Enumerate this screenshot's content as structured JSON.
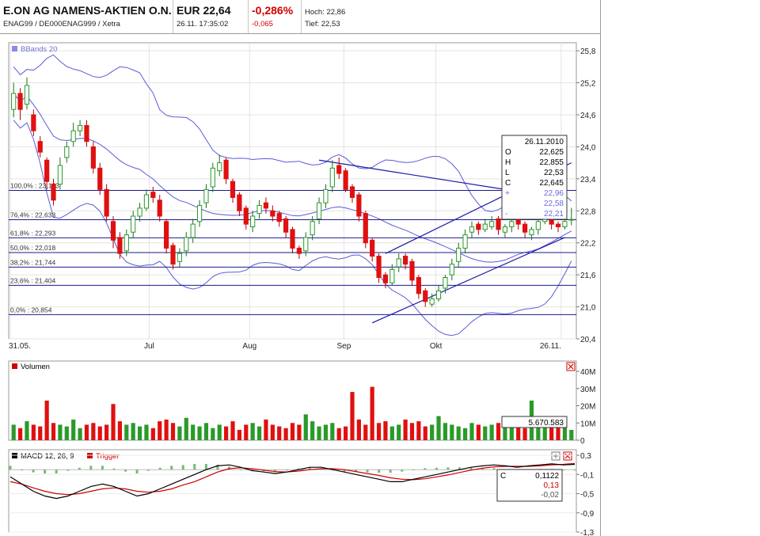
{
  "header": {
    "name": "E.ON AG NAMENS-AKTIEN O.N.",
    "ids": "ENAG99 / DE000ENAG999 / Xetra",
    "price": "EUR 22,64",
    "datetime": "26.11. 17:35:02",
    "change_pct": "-0,286%",
    "change_abs": "-0,065",
    "high": "Hoch: 22,86",
    "low": "Tief: 22,53"
  },
  "legend": {
    "bbands": "BBands 20",
    "volume": "Volumen",
    "macd": "MACD 12, 26, 9",
    "trigger": "Trigger"
  },
  "colors": {
    "up": "#2a9a2a",
    "down": "#e01010",
    "band": "#5a5ad8",
    "line": "#1a1aa8",
    "macd": "#000000",
    "trigger": "#d00000"
  },
  "icons": {
    "close": "close-icon",
    "expand": "expand-icon"
  },
  "chart_data": [
    {
      "type": "candlestick",
      "x_tick_labels": [
        "31.05.",
        "Jul",
        "Aug",
        "Sep",
        "Okt",
        "26.11."
      ],
      "y_ticks": [
        20.4,
        21.0,
        21.6,
        22.2,
        22.8,
        23.4,
        24.0,
        24.6,
        25.2,
        25.8
      ],
      "y_tick_labels": [
        "20,4",
        "21,0",
        "21,6",
        "22,2",
        "22,8",
        "23,4",
        "24,0",
        "24,6",
        "25,2",
        "25,8"
      ],
      "ylim": [
        20.4,
        25.95
      ],
      "overlay": "BBands 20",
      "fibonacci": [
        {
          "label": "100,0% : 23,183",
          "value": 23.183
        },
        {
          "label": "76,4% : 22,633",
          "value": 22.633
        },
        {
          "label": "61,8% : 22,293",
          "value": 22.293
        },
        {
          "label": "50,0% : 22,018",
          "value": 22.018
        },
        {
          "label": "38,2% : 21,744",
          "value": 21.744
        },
        {
          "label": "23,6% : 21,404",
          "value": 21.404
        },
        {
          "label": "0,0% : 20,854",
          "value": 20.854
        }
      ],
      "last_bar": {
        "date": "26.11.2010",
        "rows": [
          {
            "k": "O",
            "v": "22,625"
          },
          {
            "k": "H",
            "v": "22,855"
          },
          {
            "k": "L",
            "v": "22,53"
          },
          {
            "k": "C",
            "v": "22,645"
          }
        ],
        "bands": [
          {
            "k": "+",
            "v": "22,96"
          },
          {
            "k": "",
            "v": "22,58"
          },
          {
            "k": "-",
            "v": "22,21"
          }
        ]
      },
      "closes": [
        25.0,
        24.7,
        25.15,
        24.3,
        23.9,
        23.35,
        23.0,
        23.65,
        24.0,
        24.3,
        24.4,
        24.1,
        23.6,
        23.2,
        22.7,
        22.25,
        22.0,
        22.35,
        22.7,
        22.85,
        23.1,
        23.05,
        22.7,
        22.1,
        21.8,
        22.0,
        22.3,
        22.55,
        22.9,
        23.2,
        23.6,
        23.7,
        23.4,
        23.05,
        22.8,
        22.55,
        22.7,
        22.9,
        22.85,
        22.7,
        22.6,
        22.4,
        22.1,
        22.0,
        22.3,
        22.6,
        22.95,
        23.2,
        23.6,
        23.5,
        23.2,
        23.05,
        22.7,
        22.2,
        21.95,
        21.55,
        21.45,
        21.7,
        21.9,
        21.8,
        21.5,
        21.25,
        21.1,
        21.15,
        21.3,
        21.55,
        21.8,
        22.1,
        22.35,
        22.5,
        22.45,
        22.55,
        22.6,
        22.45,
        22.5,
        22.6,
        22.55,
        22.4,
        22.45,
        22.6,
        22.7,
        22.55,
        22.5,
        22.6,
        22.64
      ],
      "opens": [
        24.7,
        25.0,
        24.8,
        24.6,
        24.1,
        23.75,
        23.3,
        23.3,
        23.8,
        24.1,
        24.3,
        24.4,
        24.0,
        23.6,
        23.2,
        22.6,
        22.3,
        22.05,
        22.4,
        22.7,
        22.85,
        23.15,
        23.0,
        22.6,
        22.15,
        21.85,
        22.05,
        22.3,
        22.6,
        22.95,
        23.25,
        23.55,
        23.75,
        23.35,
        23.1,
        22.85,
        22.5,
        22.75,
        22.95,
        22.8,
        22.75,
        22.65,
        22.45,
        22.1,
        22.05,
        22.35,
        22.65,
        22.95,
        23.25,
        23.65,
        23.55,
        23.25,
        23.1,
        22.75,
        22.25,
        21.95,
        21.6,
        21.45,
        21.75,
        21.95,
        21.85,
        21.55,
        21.3,
        21.05,
        21.15,
        21.35,
        21.6,
        21.85,
        22.1,
        22.4,
        22.55,
        22.45,
        22.5,
        22.65,
        22.4,
        22.5,
        22.65,
        22.55,
        22.35,
        22.45,
        22.6,
        22.75,
        22.55,
        22.5,
        22.625
      ],
      "highs": [
        25.2,
        25.1,
        25.3,
        24.7,
        24.2,
        23.8,
        23.4,
        23.8,
        24.1,
        24.45,
        24.5,
        24.5,
        24.1,
        23.7,
        23.3,
        22.7,
        22.4,
        22.45,
        22.8,
        22.95,
        23.2,
        23.25,
        23.1,
        22.65,
        22.2,
        22.1,
        22.4,
        22.65,
        23.0,
        23.3,
        23.7,
        23.85,
        23.8,
        23.4,
        23.15,
        22.9,
        22.8,
        23.0,
        23.05,
        22.9,
        22.8,
        22.7,
        22.5,
        22.15,
        22.4,
        22.7,
        23.05,
        23.3,
        23.75,
        23.8,
        23.6,
        23.3,
        23.15,
        22.8,
        22.3,
        22.0,
        21.65,
        21.8,
        22.0,
        22.0,
        21.9,
        21.6,
        21.35,
        21.25,
        21.4,
        21.6,
        21.9,
        22.2,
        22.45,
        22.6,
        22.6,
        22.65,
        22.7,
        22.7,
        22.55,
        22.7,
        22.7,
        22.6,
        22.5,
        22.7,
        22.8,
        22.8,
        22.6,
        22.7,
        22.855
      ],
      "lows": [
        24.55,
        24.5,
        24.7,
        24.2,
        23.8,
        23.2,
        22.9,
        23.2,
        23.7,
        24.0,
        24.2,
        24.0,
        23.5,
        23.1,
        22.6,
        22.1,
        21.9,
        21.95,
        22.3,
        22.6,
        22.8,
        22.95,
        22.6,
        22.0,
        21.7,
        21.75,
        21.95,
        22.2,
        22.5,
        22.85,
        23.15,
        23.45,
        23.3,
        22.95,
        22.7,
        22.45,
        22.4,
        22.65,
        22.75,
        22.6,
        22.5,
        22.3,
        22.0,
        21.9,
        21.95,
        22.25,
        22.55,
        22.85,
        23.15,
        23.4,
        23.15,
        22.95,
        22.6,
        22.1,
        21.85,
        21.45,
        21.35,
        21.4,
        21.65,
        21.7,
        21.4,
        21.15,
        21.0,
        21.0,
        21.1,
        21.25,
        21.5,
        21.75,
        22.0,
        22.3,
        22.35,
        22.4,
        22.45,
        22.35,
        22.3,
        22.4,
        22.45,
        22.3,
        22.25,
        22.35,
        22.55,
        22.45,
        22.4,
        22.45,
        22.53
      ]
    },
    {
      "type": "bar",
      "name": "Volumen",
      "y_ticks": [
        0,
        10,
        20,
        30,
        40
      ],
      "y_tick_labels": [
        "0",
        "10M",
        "20M",
        "30M",
        "40M"
      ],
      "ylim": [
        0,
        40
      ],
      "value_label": "5.670.583",
      "values": [
        9,
        7,
        11,
        9,
        8,
        23,
        10,
        9,
        8,
        12,
        7,
        9,
        10,
        8,
        9,
        21,
        11,
        9,
        10,
        8,
        9,
        7,
        11,
        12,
        10,
        8,
        13,
        9,
        8,
        10,
        7,
        9,
        8,
        11,
        6,
        9,
        10,
        8,
        12,
        9,
        8,
        7,
        10,
        9,
        15,
        11,
        8,
        9,
        10,
        7,
        8,
        28,
        12,
        9,
        31,
        10,
        11,
        8,
        9,
        12,
        10,
        11,
        8,
        9,
        14,
        10,
        9,
        8,
        7,
        10,
        9,
        8,
        9,
        10,
        11,
        8,
        9,
        7,
        23,
        9,
        8,
        10,
        8,
        9,
        6
      ]
    },
    {
      "type": "line",
      "name": "MACD 12, 26, 9",
      "y_ticks": [
        0.3,
        -0.1,
        -0.5,
        -0.9,
        -1.3
      ],
      "y_tick_labels": [
        "0,3",
        "-0,1",
        "-0,5",
        "-0,9",
        "-1,3"
      ],
      "ylim": [
        -1.3,
        0.35
      ],
      "readout": [
        {
          "k": "C",
          "v": "0,1122"
        },
        {
          "k": "",
          "v": "0,13"
        },
        {
          "k": "",
          "v": "-0,02"
        }
      ],
      "series": [
        {
          "name": "MACD 12, 26, 9",
          "values": [
            -0.15,
            -0.3,
            -0.45,
            -0.55,
            -0.6,
            -0.55,
            -0.45,
            -0.35,
            -0.3,
            -0.35,
            -0.45,
            -0.55,
            -0.5,
            -0.4,
            -0.3,
            -0.2,
            -0.1,
            0.0,
            0.08,
            0.1,
            0.05,
            -0.02,
            -0.05,
            -0.08,
            -0.05,
            0.0,
            0.05,
            0.05,
            0.0,
            -0.05,
            -0.1,
            -0.15,
            -0.2,
            -0.25,
            -0.25,
            -0.2,
            -0.15,
            -0.1,
            -0.05,
            0.0,
            0.05,
            0.08,
            0.1,
            0.08,
            0.05,
            0.08,
            0.1,
            0.12,
            0.1,
            0.11
          ]
        },
        {
          "name": "Trigger",
          "values": [
            -0.25,
            -0.3,
            -0.38,
            -0.45,
            -0.5,
            -0.52,
            -0.5,
            -0.45,
            -0.4,
            -0.38,
            -0.4,
            -0.45,
            -0.47,
            -0.45,
            -0.4,
            -0.32,
            -0.25,
            -0.15,
            -0.05,
            0.02,
            0.04,
            0.02,
            -0.01,
            -0.04,
            -0.05,
            -0.03,
            0.0,
            0.02,
            0.02,
            0.0,
            -0.04,
            -0.08,
            -0.12,
            -0.17,
            -0.2,
            -0.21,
            -0.19,
            -0.15,
            -0.11,
            -0.06,
            -0.01,
            0.03,
            0.06,
            0.07,
            0.07,
            0.07,
            0.08,
            0.1,
            0.11,
            0.13
          ]
        }
      ]
    }
  ]
}
